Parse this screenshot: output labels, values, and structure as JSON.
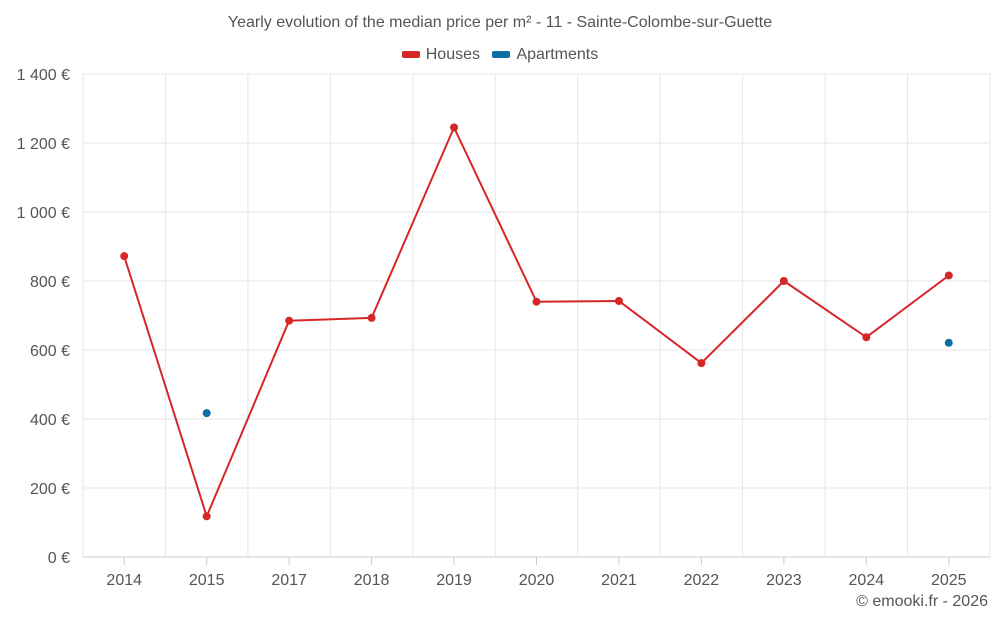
{
  "chart_data": {
    "type": "line",
    "title": "Yearly evolution of the median price per m² - 11 - Sainte-Colombe-sur-Guette",
    "categories": [
      "2014",
      "2015",
      "2017",
      "2018",
      "2019",
      "2020",
      "2021",
      "2022",
      "2023",
      "2024",
      "2025"
    ],
    "y_tick_labels": [
      "0 €",
      "200 €",
      "400 €",
      "600 €",
      "800 €",
      "1 000 €",
      "1 200 €",
      "1 400 €"
    ],
    "y_ticks": [
      0,
      200,
      400,
      600,
      800,
      1000,
      1200,
      1400
    ],
    "ylim": [
      0,
      1400
    ],
    "grid": true,
    "legend_position": "top-center",
    "series": [
      {
        "name": "Houses",
        "color": "#d62728",
        "values": [
          872,
          118,
          685,
          693,
          1245,
          740,
          742,
          562,
          800,
          637,
          816
        ]
      },
      {
        "name": "Apartments",
        "color": "#0b6fa4",
        "values": [
          null,
          417,
          null,
          null,
          null,
          null,
          null,
          null,
          null,
          null,
          621
        ]
      }
    ]
  },
  "footer": "© emooki.fr - 2026"
}
